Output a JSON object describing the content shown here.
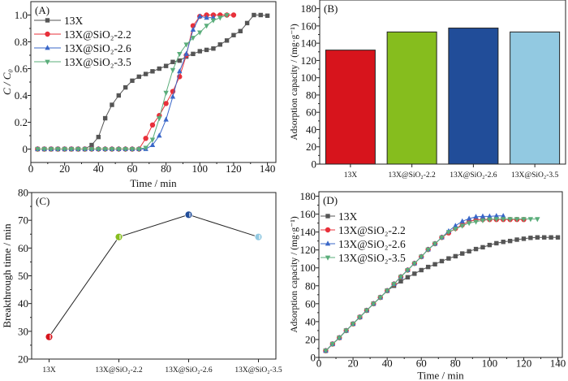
{
  "chart_data": [
    {
      "panel": "(A)",
      "type": "line",
      "xlabel": "Time / min",
      "ylabel": "C / C₀",
      "xlim": [
        0,
        145
      ],
      "ylim": [
        -0.1,
        1.1
      ],
      "xticks": [
        0,
        20,
        40,
        60,
        80,
        100,
        120,
        140
      ],
      "yticks": [
        0,
        0.2,
        0.4,
        0.6,
        0.8,
        1.0
      ],
      "ytick_labels": [
        "0",
        "0.2",
        "0.4",
        "0.6",
        "0.8",
        "1.0"
      ],
      "legend": "top-left",
      "series": [
        {
          "name": "13X",
          "color": "#555555",
          "marker": "square",
          "x": [
            4,
            8,
            12,
            16,
            20,
            24,
            28,
            32,
            36,
            40,
            44,
            48,
            52,
            56,
            60,
            64,
            68,
            72,
            76,
            80,
            84,
            88,
            92,
            96,
            100,
            104,
            108,
            112,
            116,
            120,
            124,
            128,
            132,
            136,
            140
          ],
          "y": [
            0,
            0,
            0,
            0,
            0,
            0,
            0,
            0,
            0.03,
            0.09,
            0.23,
            0.33,
            0.4,
            0.46,
            0.51,
            0.54,
            0.56,
            0.58,
            0.6,
            0.62,
            0.65,
            0.66,
            0.69,
            0.71,
            0.73,
            0.74,
            0.75,
            0.78,
            0.81,
            0.85,
            0.88,
            0.94,
            1.0,
            1.0,
            0.995
          ]
        },
        {
          "name": "13X@SiO₂-2.2",
          "color": "#e8303a",
          "marker": "circle",
          "x": [
            4,
            8,
            12,
            16,
            20,
            24,
            28,
            32,
            36,
            40,
            44,
            48,
            52,
            56,
            60,
            64,
            68,
            72,
            76,
            80,
            84,
            88,
            92,
            96,
            100,
            104,
            108,
            112,
            116,
            120
          ],
          "y": [
            0,
            0,
            0,
            0,
            0,
            0,
            0,
            0,
            0,
            0,
            0,
            0,
            0,
            0,
            0,
            0,
            0.08,
            0.18,
            0.25,
            0.34,
            0.43,
            0.54,
            0.7,
            0.92,
            0.99,
            1.0,
            1.0,
            1.0,
            1.0,
            1.0
          ]
        },
        {
          "name": "13X@SiO₂-2.6",
          "color": "#3a67c8",
          "marker": "triangle-up",
          "x": [
            4,
            8,
            12,
            16,
            20,
            24,
            28,
            32,
            36,
            40,
            44,
            48,
            52,
            56,
            60,
            64,
            68,
            72,
            76,
            80,
            84,
            88,
            92,
            96,
            100,
            104,
            108
          ],
          "y": [
            0,
            0,
            0,
            0,
            0,
            0,
            0,
            0,
            0,
            0,
            0,
            0,
            0,
            0,
            0,
            0,
            0,
            0.03,
            0.1,
            0.22,
            0.39,
            0.58,
            0.71,
            0.89,
            0.99,
            0.98,
            0.98
          ]
        },
        {
          "name": "13X@SiO₂-3.5",
          "color": "#5aad7a",
          "marker": "triangle-down",
          "x": [
            4,
            8,
            12,
            16,
            20,
            24,
            28,
            32,
            36,
            40,
            44,
            48,
            52,
            56,
            60,
            64,
            68,
            72,
            76,
            80,
            84,
            88,
            92,
            96,
            100,
            104,
            108,
            112,
            116
          ],
          "y": [
            0,
            0,
            0,
            0,
            0,
            0,
            0,
            0,
            0,
            0,
            0,
            0,
            0,
            0,
            0,
            0,
            0.01,
            0.07,
            0.23,
            0.42,
            0.59,
            0.71,
            0.78,
            0.83,
            0.87,
            0.92,
            0.96,
            0.98,
            1.0
          ]
        }
      ]
    },
    {
      "panel": "(B)",
      "type": "bar",
      "xlabel": "",
      "ylabel": "Adsorption capacity / (mg·g⁻¹)",
      "ylim": [
        0,
        190
      ],
      "yticks": [
        0,
        20,
        40,
        60,
        80,
        100,
        120,
        140,
        160,
        180
      ],
      "categories": [
        "13X",
        "13X@SiO₂-2.2",
        "13X@SiO₂-2.6",
        "13X@SiO₂-3.5"
      ],
      "values": [
        132,
        153,
        157.5,
        153
      ],
      "colors": [
        "#d7141c",
        "#86bd1e",
        "#214d99",
        "#92c9e1"
      ]
    },
    {
      "panel": "(C)",
      "type": "line",
      "xlabel": "",
      "ylabel": "Breakthrough time / min",
      "ylim": [
        20,
        80
      ],
      "yticks": [
        20,
        30,
        40,
        50,
        60,
        70,
        80
      ],
      "categories": [
        "13X",
        "13X@SiO₂-2.2",
        "13X@SiO₂-2.6",
        "13X@SiO₂-3.5"
      ],
      "values": [
        28,
        64,
        72,
        64
      ],
      "colors": [
        "#d7141c",
        "#86bd1e",
        "#214d99",
        "#92c9e1"
      ]
    },
    {
      "panel": "(D)",
      "type": "line",
      "xlabel": "Time / min",
      "ylabel": "Adsorption capacity / (mg·g⁻¹)",
      "xlim": [
        0,
        142.6
      ],
      "ylim": [
        0,
        185
      ],
      "xticks": [
        0,
        20,
        40,
        60,
        80,
        100,
        120,
        140
      ],
      "yticks": [
        0,
        20,
        40,
        60,
        80,
        100,
        120,
        140,
        160,
        180
      ],
      "legend": "top-left",
      "series": [
        {
          "name": "13X",
          "color": "#555555",
          "marker": "square",
          "x": [
            4,
            8,
            12,
            16,
            20,
            24,
            28,
            32,
            36,
            40,
            44,
            48,
            52,
            56,
            60,
            64,
            68,
            72,
            76,
            80,
            84,
            88,
            92,
            96,
            100,
            104,
            108,
            112,
            116,
            120,
            124,
            128,
            132,
            136,
            140
          ],
          "y": [
            7.5,
            15,
            22,
            30,
            37.5,
            45,
            52.5,
            60,
            67,
            74.5,
            80,
            85,
            89.5,
            93.5,
            97.5,
            101,
            104,
            107.5,
            110.5,
            113,
            116,
            118.5,
            121,
            123,
            125.5,
            127.5,
            129,
            130,
            131.5,
            132.5,
            133.5,
            134,
            134,
            134,
            134
          ]
        },
        {
          "name": "13X@SiO₂-2.2",
          "color": "#e8303a",
          "marker": "circle",
          "x": [
            4,
            8,
            12,
            16,
            20,
            24,
            28,
            32,
            36,
            40,
            44,
            48,
            52,
            56,
            60,
            64,
            68,
            72,
            76,
            80,
            84,
            88,
            92,
            96,
            100,
            104,
            108,
            112,
            116,
            120
          ],
          "y": [
            7.5,
            15,
            22,
            30,
            37.5,
            45,
            52.5,
            60,
            67,
            74.5,
            82,
            90,
            97.5,
            105,
            112.5,
            120.5,
            127,
            134,
            139,
            144,
            148,
            152,
            153.5,
            154,
            154,
            154,
            154,
            154,
            154,
            154
          ]
        },
        {
          "name": "13X@SiO₂-2.6",
          "color": "#3a67c8",
          "marker": "triangle-up",
          "x": [
            4,
            8,
            12,
            16,
            20,
            24,
            28,
            32,
            36,
            40,
            44,
            48,
            52,
            56,
            60,
            64,
            68,
            72,
            76,
            80,
            84,
            88,
            92,
            96,
            100,
            104,
            108
          ],
          "y": [
            7.5,
            15,
            22,
            30,
            37.5,
            45,
            52.5,
            60,
            67,
            74.5,
            82,
            90,
            97.5,
            105,
            112.5,
            120.5,
            127,
            134,
            141,
            147,
            152,
            155,
            157,
            157.5,
            157.5,
            158,
            158
          ]
        },
        {
          "name": "13X@SiO₂-3.5",
          "color": "#5aad7a",
          "marker": "triangle-down",
          "x": [
            4,
            8,
            12,
            16,
            20,
            24,
            28,
            32,
            36,
            40,
            44,
            48,
            52,
            56,
            60,
            64,
            68,
            72,
            76,
            80,
            84,
            88,
            92,
            96,
            100,
            104,
            108,
            112,
            116,
            120,
            124,
            128
          ],
          "y": [
            7.5,
            15,
            22,
            30,
            37.5,
            45,
            52.5,
            60,
            67,
            74.5,
            82,
            90,
            97.5,
            105,
            112.5,
            120.5,
            127,
            134,
            140,
            143.5,
            147,
            150,
            151.5,
            153,
            154,
            154.5,
            154.5,
            154.5,
            154.5,
            154.5,
            154.5,
            154.5
          ]
        }
      ]
    }
  ]
}
